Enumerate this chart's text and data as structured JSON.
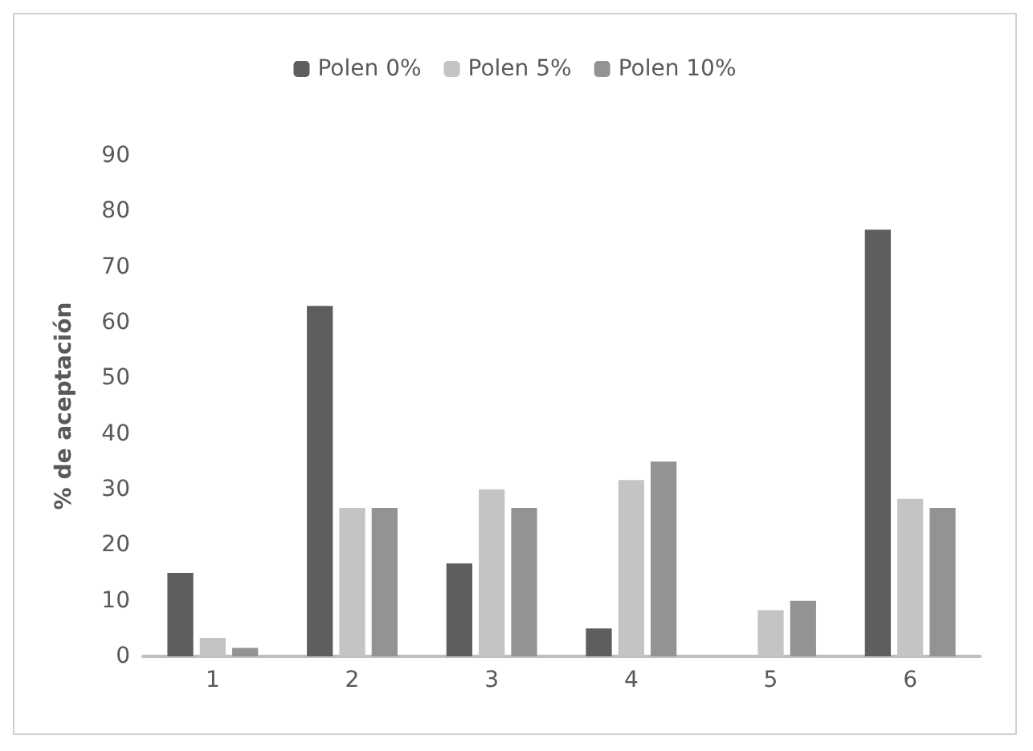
{
  "chart_data": {
    "type": "bar",
    "ylabel": "% de aceptación",
    "categories": [
      "1",
      "2",
      "3",
      "4",
      "5",
      "6"
    ],
    "series": [
      {
        "name": "Polen 0%",
        "color": "#5e5e5e",
        "values": [
          15,
          63,
          16.7,
          5,
          0,
          76.7
        ]
      },
      {
        "name": "Polen 5%",
        "color": "#c4c4c4",
        "values": [
          3.3,
          26.7,
          30,
          31.7,
          8.3,
          28.3
        ]
      },
      {
        "name": "Polen 10%",
        "color": "#939393",
        "values": [
          1.5,
          26.7,
          26.7,
          35,
          10,
          26.7
        ]
      }
    ],
    "ylim": [
      0,
      90
    ],
    "yticks": [
      0,
      10,
      20,
      30,
      40,
      50,
      60,
      70,
      80,
      90
    ],
    "grid": false,
    "legend": "top"
  }
}
